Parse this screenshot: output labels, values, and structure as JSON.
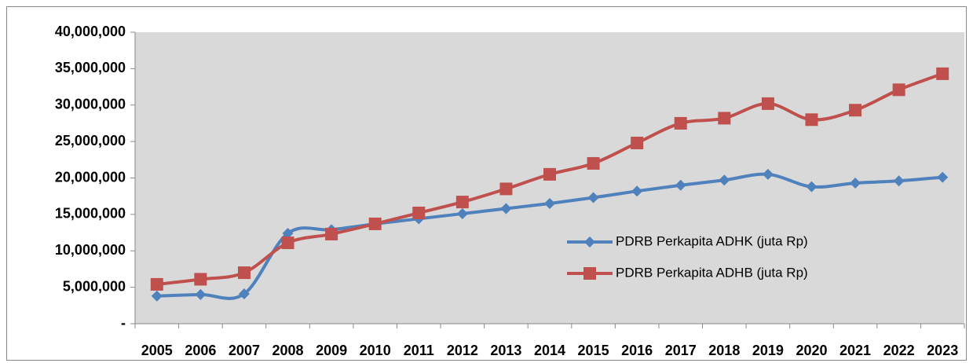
{
  "chart_data": {
    "type": "line",
    "categories": [
      "2005",
      "2006",
      "2007",
      "2008",
      "2009",
      "2010",
      "2011",
      "2012",
      "2013",
      "2014",
      "2015",
      "2016",
      "2017",
      "2018",
      "2019",
      "2020",
      "2021",
      "2022",
      "2023"
    ],
    "series": [
      {
        "name": "PDRB Perkapita ADHK (juta Rp)",
        "color": "#4f81bd",
        "marker": "diamond",
        "values": [
          3800000,
          4000000,
          4100000,
          12400000,
          12900000,
          13700000,
          14400000,
          15100000,
          15800000,
          16500000,
          17300000,
          18200000,
          19000000,
          19700000,
          20500000,
          18800000,
          19300000,
          19600000,
          20100000
        ]
      },
      {
        "name": "PDRB Perkapita ADHB (juta Rp)",
        "color": "#c0504d",
        "marker": "square",
        "values": [
          5400000,
          6100000,
          7000000,
          11100000,
          12300000,
          13700000,
          15200000,
          16700000,
          18500000,
          20500000,
          22000000,
          24800000,
          27500000,
          28200000,
          30200000,
          28000000,
          29300000,
          32100000,
          34300000
        ]
      }
    ],
    "ylim": [
      0,
      40000000
    ],
    "yticks": [
      {
        "value": 0,
        "label": "-"
      },
      {
        "value": 5000000,
        "label": "5,000,000"
      },
      {
        "value": 10000000,
        "label": "10,000,000"
      },
      {
        "value": 15000000,
        "label": "15,000,000"
      },
      {
        "value": 20000000,
        "label": "20,000,000"
      },
      {
        "value": 25000000,
        "label": "25,000,000"
      },
      {
        "value": 30000000,
        "label": "30,000,000"
      },
      {
        "value": 35000000,
        "label": "35,000,000"
      },
      {
        "value": 40000000,
        "label": "40,000,000"
      }
    ],
    "grid": false,
    "smooth": true,
    "legend": "right",
    "plot_background": "#d9d9d9"
  }
}
